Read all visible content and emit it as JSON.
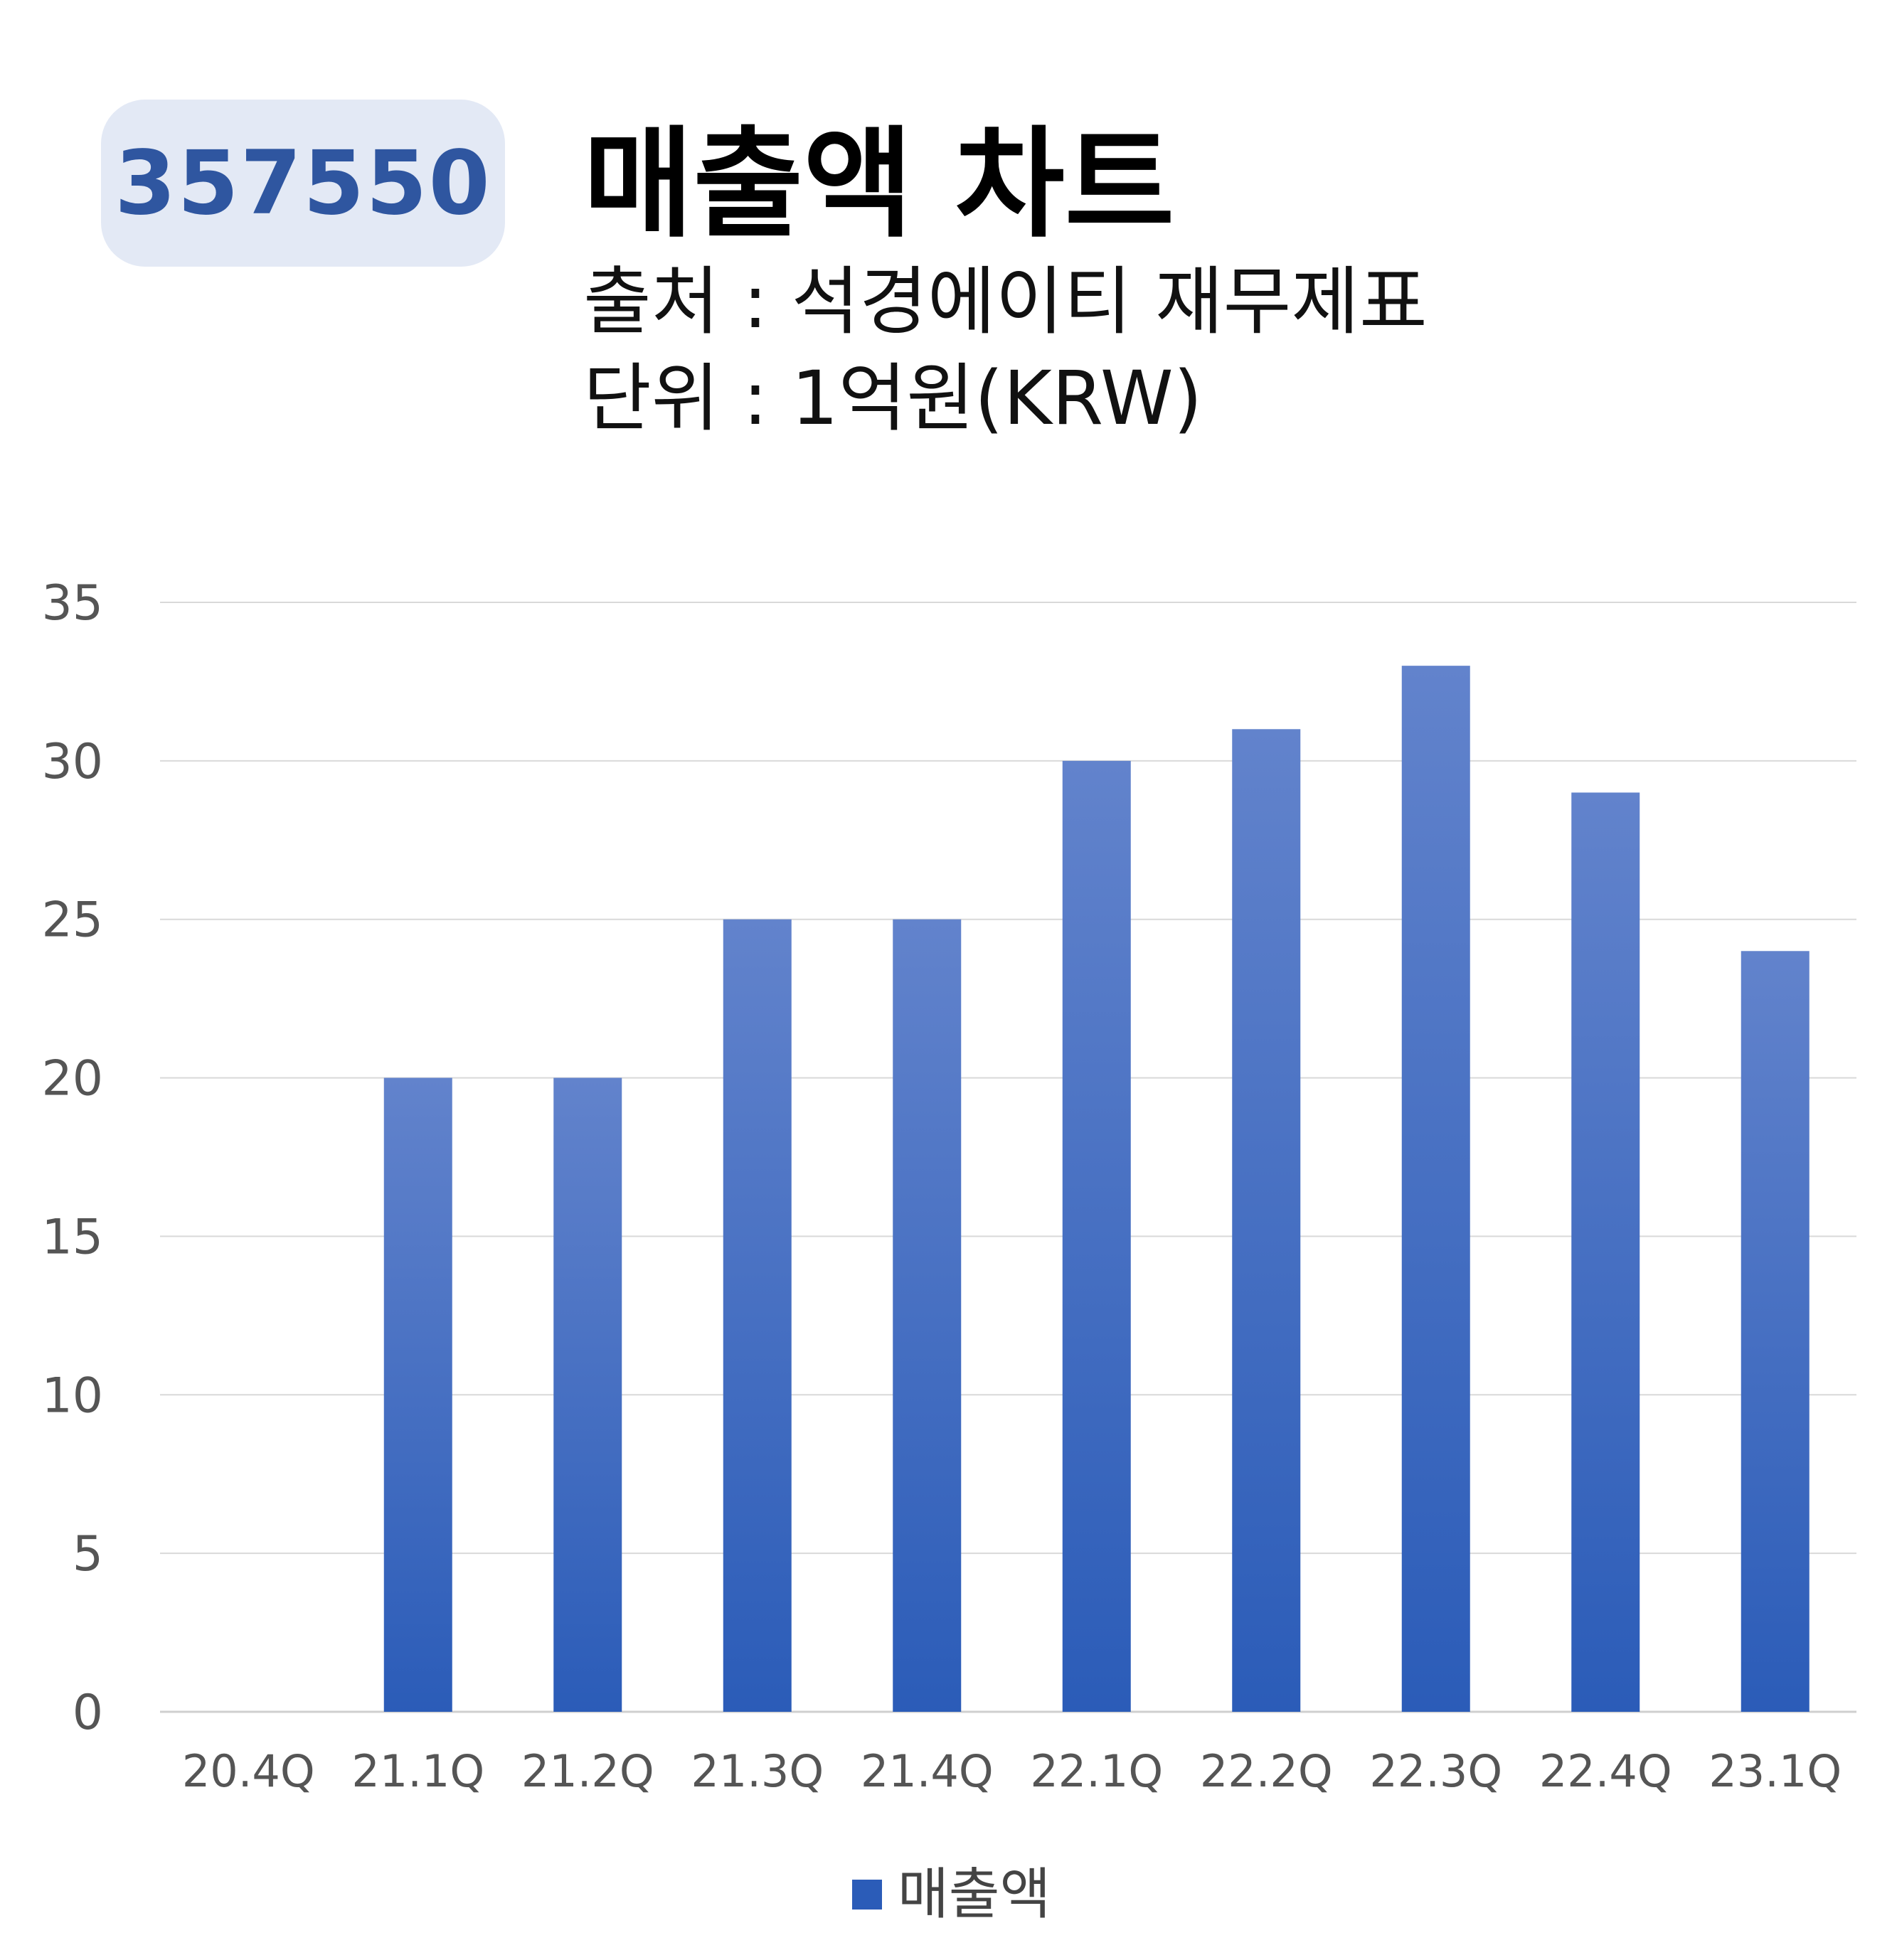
{
  "header": {
    "code": "357550",
    "title": "매출액 차트",
    "source_line": "출처 : 석경에이티 재무제표",
    "unit_line": "단위 : 1억원(KRW)"
  },
  "colors": {
    "bar_top": "#6283cc",
    "bar_bottom": "#2b5cb8",
    "badge_bg": "#e3e9f5",
    "badge_text": "#2f56a0",
    "grid": "#d9d9d9"
  },
  "chart_data": {
    "type": "bar",
    "categories": [
      "20.4Q",
      "21.1Q",
      "21.2Q",
      "21.3Q",
      "21.4Q",
      "22.1Q",
      "22.2Q",
      "22.3Q",
      "22.4Q",
      "23.1Q"
    ],
    "series": [
      {
        "name": "매출액",
        "values": [
          0,
          20,
          20,
          25,
          25,
          30,
          31,
          33,
          29,
          24
        ]
      }
    ],
    "title": "매출액 차트",
    "xlabel": "",
    "ylabel": "",
    "ylim": [
      0,
      35
    ],
    "yticks": [
      0,
      5,
      10,
      15,
      20,
      25,
      30,
      35
    ],
    "grid": true,
    "legend": "bottom"
  }
}
